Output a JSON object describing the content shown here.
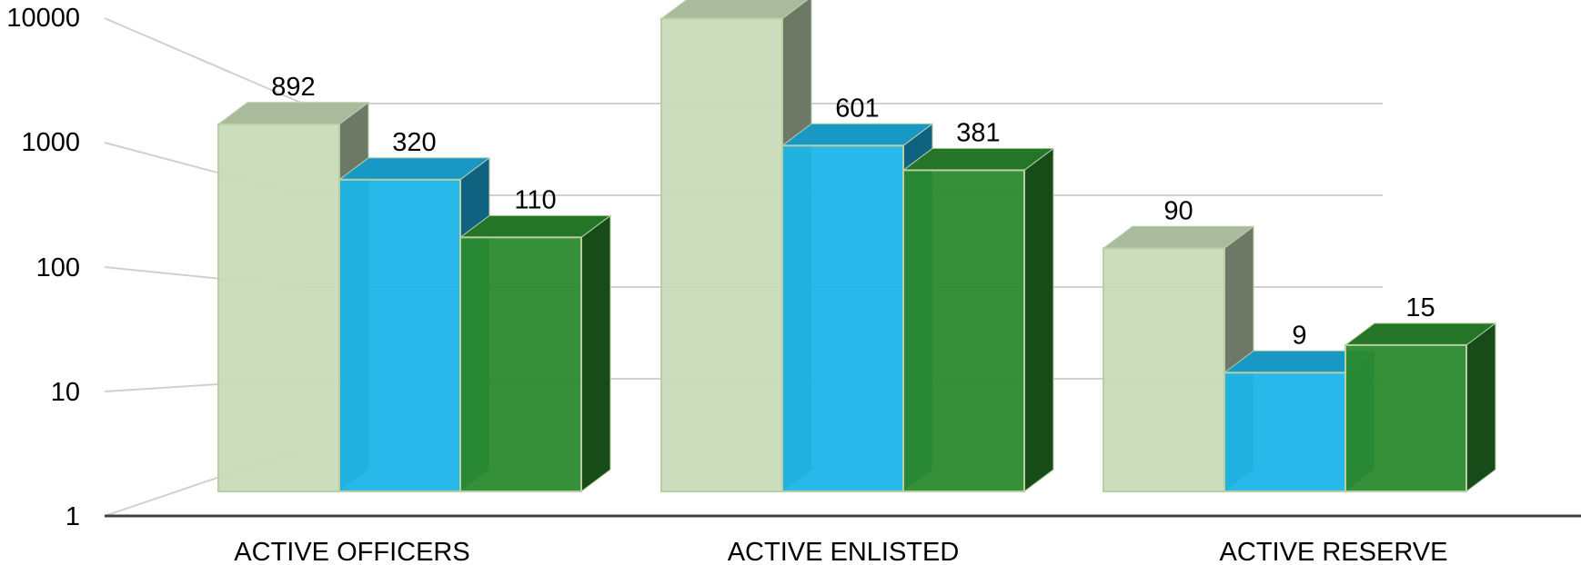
{
  "chart_data": {
    "type": "bar",
    "categories": [
      "ACTIVE OFFICERS",
      "ACTIVE ENLISTED",
      "ACTIVE RESERVE"
    ],
    "series": [
      {
        "values": [
          892,
          6295,
          90
        ],
        "color": "#c8dbb9"
      },
      {
        "values": [
          320,
          601,
          9
        ],
        "color": "#1cb4e8"
      },
      {
        "values": [
          110,
          381,
          15
        ],
        "color": "#2a8a2e"
      }
    ],
    "yscale": "log",
    "ylim": [
      1,
      10000
    ],
    "yticks": [
      "1",
      "10",
      "100",
      "1000",
      "10000"
    ],
    "grid": true,
    "legend": "none",
    "style": "3d-clustered"
  }
}
